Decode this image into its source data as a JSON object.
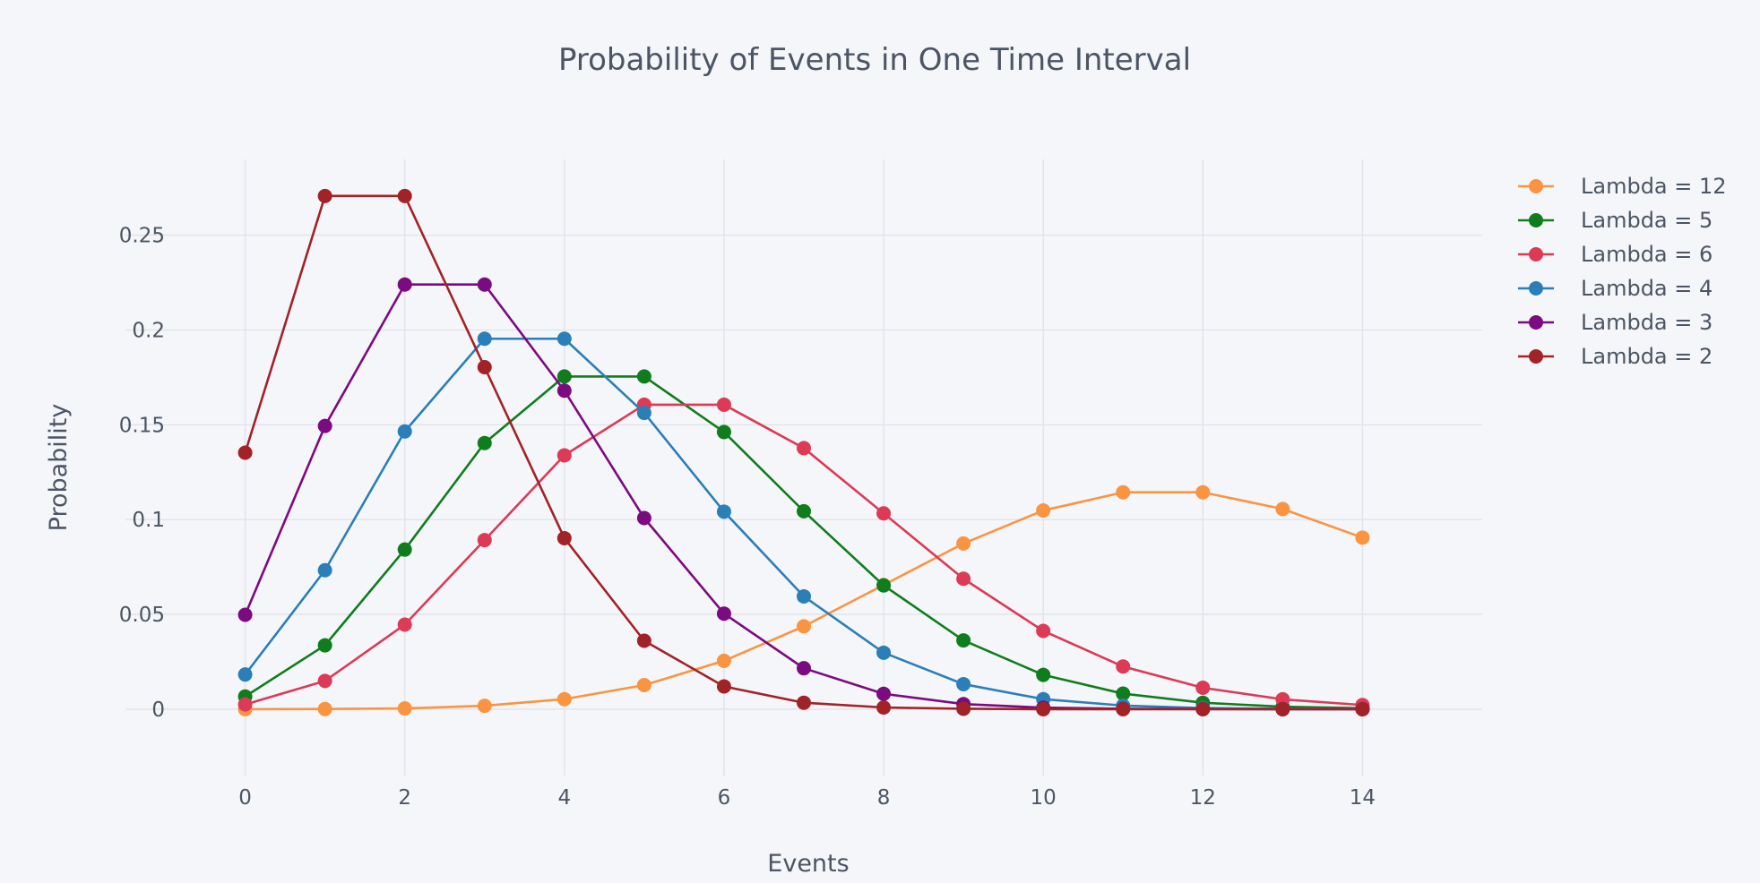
{
  "chart_data": {
    "type": "line",
    "title": "Probability of Events in One Time Interval",
    "xlabel": "Events",
    "ylabel": "Probability",
    "xlim": [
      -1.5,
      15.5
    ],
    "ylim": [
      -0.035,
      0.29
    ],
    "x_ticks": [
      0,
      2,
      4,
      6,
      8,
      10,
      12,
      14
    ],
    "y_ticks": [
      0,
      0.05,
      0.1,
      0.15,
      0.2,
      0.25
    ],
    "y_tick_labels": [
      "0",
      "0.05",
      "0.1",
      "0.15",
      "0.2",
      "0.25"
    ],
    "grid": true,
    "legend_position": "top-right",
    "x": [
      0,
      1,
      2,
      3,
      4,
      5,
      6,
      7,
      8,
      9,
      10,
      11,
      12,
      13,
      14
    ],
    "series": [
      {
        "name": "Lambda = 12",
        "color": "#fa9441",
        "values": [
          0.0,
          0.0001,
          0.0004,
          0.0018,
          0.0053,
          0.0127,
          0.0255,
          0.0437,
          0.0655,
          0.0874,
          0.1048,
          0.1144,
          0.1144,
          0.1056,
          0.0905
        ]
      },
      {
        "name": "Lambda = 5",
        "color": "#107d1d",
        "values": [
          0.0067,
          0.0337,
          0.0842,
          0.1404,
          0.1755,
          0.1755,
          0.1462,
          0.1044,
          0.0653,
          0.0363,
          0.0181,
          0.0082,
          0.0034,
          0.0013,
          0.0005
        ]
      },
      {
        "name": "Lambda = 6",
        "color": "#dc3a55",
        "values": [
          0.0025,
          0.0149,
          0.0446,
          0.0892,
          0.1339,
          0.1606,
          0.1606,
          0.1377,
          0.1033,
          0.0688,
          0.0413,
          0.0225,
          0.0113,
          0.0052,
          0.0022
        ]
      },
      {
        "name": "Lambda = 4",
        "color": "#2a7fb9",
        "values": [
          0.0183,
          0.0733,
          0.1465,
          0.1954,
          0.1954,
          0.1563,
          0.1042,
          0.0595,
          0.0298,
          0.0132,
          0.0053,
          0.0019,
          0.0006,
          0.0002,
          0.0001
        ]
      },
      {
        "name": "Lambda = 3",
        "color": "#7c0a80",
        "values": [
          0.0498,
          0.1494,
          0.224,
          0.224,
          0.168,
          0.1008,
          0.0504,
          0.0216,
          0.0081,
          0.0027,
          0.0008,
          0.0002,
          0.0001,
          0.0,
          0.0
        ]
      },
      {
        "name": "Lambda = 2",
        "color": "#a12227",
        "values": [
          0.1353,
          0.2707,
          0.2707,
          0.1804,
          0.0902,
          0.0361,
          0.012,
          0.0034,
          0.0009,
          0.0002,
          0.0,
          0.0,
          0.0,
          0.0,
          0.0
        ]
      }
    ]
  }
}
